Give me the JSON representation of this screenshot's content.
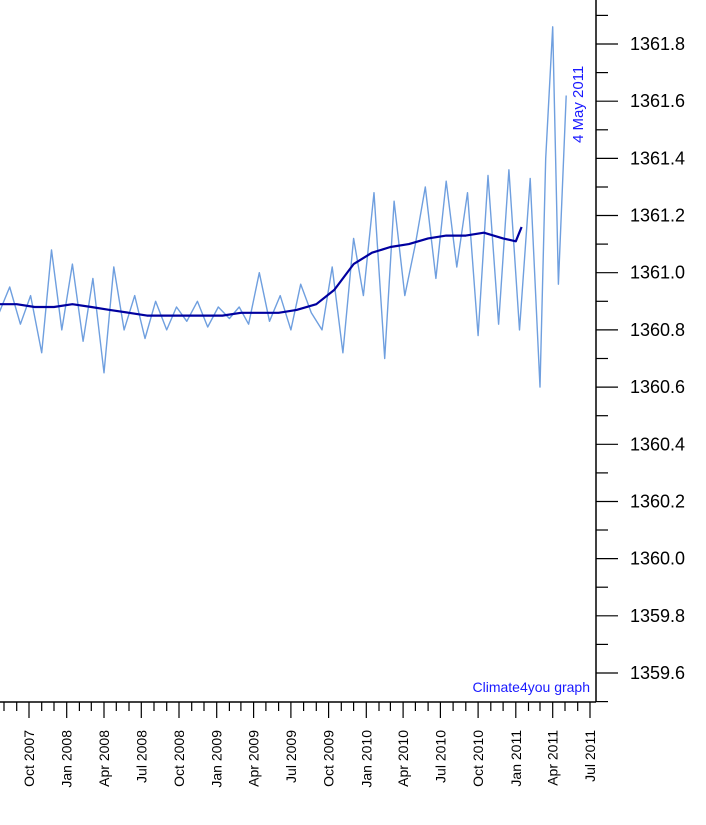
{
  "chart_data": {
    "type": "line",
    "title": "",
    "xlabel": "",
    "ylabel": "",
    "ylim": [
      1359.5,
      1362.0
    ],
    "y_ticks": [
      "1359.6",
      "1359.8",
      "1360.0",
      "1360.2",
      "1360.4",
      "1360.6",
      "1360.8",
      "1361.0",
      "1361.2",
      "1361.4",
      "1361.6",
      "1361.8"
    ],
    "x_ticks": [
      "Oct 2007",
      "Jan 2008",
      "Apr 2008",
      "Jul 2008",
      "Oct 2008",
      "Jan 2009",
      "Apr 2009",
      "Jul 2009",
      "Oct 2009",
      "Jan 2010",
      "Apr 2010",
      "Jul 2010",
      "Oct 2010",
      "Jan 2011",
      "Apr 2011",
      "Jul 2011"
    ],
    "date_annotation": "4 May 2011",
    "credit": "Climate4you graph",
    "grid": false,
    "colors": {
      "daily": "#6f9fdf",
      "smoothed": "#00009f",
      "text_blue": "#1a1aff",
      "axis": "#000000"
    },
    "series": [
      {
        "x": [
          "2007-07-20",
          "2007-09-01",
          "2007-10-15",
          "2007-12-01",
          "2008-01-15",
          "2008-03-01",
          "2008-04-15",
          "2008-06-01",
          "2008-07-15",
          "2008-09-01",
          "2008-10-15",
          "2008-12-01",
          "2009-01-15",
          "2009-03-01",
          "2009-04-15",
          "2009-06-01",
          "2009-07-15",
          "2009-09-01",
          "2009-10-15",
          "2009-12-01",
          "2010-01-15",
          "2010-03-01",
          "2010-04-15",
          "2010-06-01",
          "2010-07-15",
          "2010-09-01",
          "2010-10-15",
          "2010-12-01",
          "2011-01-01",
          "2011-01-15"
        ],
        "values": [
          1360.89,
          1360.89,
          1360.88,
          1360.88,
          1360.89,
          1360.88,
          1360.87,
          1360.86,
          1360.85,
          1360.85,
          1360.85,
          1360.85,
          1360.85,
          1360.86,
          1360.86,
          1360.86,
          1360.87,
          1360.89,
          1360.94,
          1361.03,
          1361.07,
          1361.09,
          1361.1,
          1361.12,
          1361.13,
          1361.13,
          1361.14,
          1361.12,
          1361.11,
          1361.16
        ]
      },
      {
        "x": [
          "2007-07-20",
          "2007-08-15",
          "2007-09-10",
          "2007-10-05",
          "2007-11-01",
          "2007-11-25",
          "2007-12-20",
          "2008-01-15",
          "2008-02-10",
          "2008-03-05",
          "2008-04-01",
          "2008-04-25",
          "2008-05-20",
          "2008-06-15",
          "2008-07-10",
          "2008-08-05",
          "2008-09-01",
          "2008-09-25",
          "2008-10-20",
          "2008-11-15",
          "2008-12-10",
          "2009-01-05",
          "2009-02-01",
          "2009-02-25",
          "2009-03-20",
          "2009-04-15",
          "2009-05-10",
          "2009-06-05",
          "2009-07-01",
          "2009-07-25",
          "2009-08-20",
          "2009-09-15",
          "2009-10-10",
          "2009-11-05",
          "2009-12-01",
          "2009-12-25",
          "2010-01-20",
          "2010-02-15",
          "2010-03-10",
          "2010-04-05",
          "2010-05-01",
          "2010-05-25",
          "2010-06-20",
          "2010-07-15",
          "2010-08-10",
          "2010-09-05",
          "2010-10-01",
          "2010-10-25",
          "2010-11-20",
          "2010-12-15",
          "2011-01-10",
          "2011-02-05",
          "2011-03-01",
          "2011-03-15",
          "2011-04-01",
          "2011-04-15",
          "2011-05-04"
        ],
        "values": [
          1360.86,
          1360.95,
          1360.82,
          1360.92,
          1360.72,
          1361.08,
          1360.8,
          1361.03,
          1360.76,
          1360.98,
          1360.65,
          1361.02,
          1360.8,
          1360.92,
          1360.77,
          1360.9,
          1360.8,
          1360.88,
          1360.83,
          1360.9,
          1360.81,
          1360.88,
          1360.84,
          1360.88,
          1360.82,
          1361.0,
          1360.83,
          1360.92,
          1360.8,
          1360.96,
          1360.86,
          1360.8,
          1361.02,
          1360.72,
          1361.12,
          1360.92,
          1361.28,
          1360.7,
          1361.25,
          1360.92,
          1361.1,
          1361.3,
          1360.98,
          1361.32,
          1361.02,
          1361.28,
          1360.78,
          1361.34,
          1360.82,
          1361.36,
          1360.8,
          1361.33,
          1360.6,
          1361.4,
          1361.86,
          1360.96,
          1361.62
        ]
      }
    ]
  }
}
